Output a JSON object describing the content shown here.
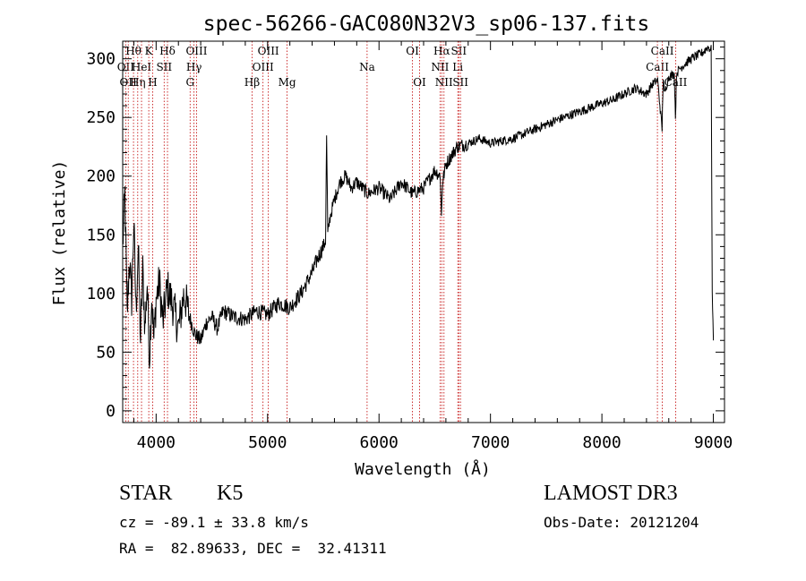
{
  "chart_data": {
    "type": "line",
    "title": "spec-56266-GAC080N32V3_sp06-137.fits",
    "xlabel": "Wavelength (Å)",
    "ylabel": "Flux (relative)",
    "xlim": [
      3700,
      9100
    ],
    "ylim": [
      -10,
      315
    ],
    "xticks": [
      4000,
      5000,
      6000,
      7000,
      8000,
      9000
    ],
    "yticks": [
      0,
      50,
      100,
      150,
      200,
      250,
      300
    ],
    "series": [
      {
        "name": "flux",
        "x": [
          3700,
          3720,
          3740,
          3760,
          3780,
          3800,
          3820,
          3840,
          3860,
          3880,
          3900,
          3920,
          3940,
          3960,
          3980,
          4000,
          4030,
          4060,
          4100,
          4150,
          4200,
          4250,
          4300,
          4350,
          4400,
          4450,
          4500,
          4550,
          4600,
          4700,
          4800,
          4900,
          5000,
          5100,
          5200,
          5300,
          5400,
          5450,
          5500,
          5520,
          5530,
          5540,
          5560,
          5600,
          5650,
          5700,
          5750,
          5800,
          5900,
          6000,
          6100,
          6200,
          6300,
          6400,
          6500,
          6550,
          6560,
          6570,
          6580,
          6600,
          6700,
          6800,
          6900,
          7000,
          7200,
          7400,
          7600,
          7800,
          8000,
          8100,
          8200,
          8300,
          8400,
          8450,
          8500,
          8540,
          8550,
          8560,
          8600,
          8650,
          8660,
          8670,
          8700,
          8800,
          8900,
          8950,
          8980,
          8990,
          9000
        ],
        "y": [
          140,
          185,
          80,
          130,
          95,
          160,
          85,
          140,
          60,
          120,
          70,
          110,
          45,
          100,
          60,
          95,
          110,
          75,
          105,
          90,
          70,
          100,
          80,
          65,
          60,
          75,
          80,
          70,
          85,
          80,
          78,
          85,
          82,
          92,
          88,
          100,
          118,
          130,
          140,
          145,
          235,
          150,
          165,
          180,
          195,
          200,
          190,
          195,
          185,
          190,
          180,
          195,
          185,
          190,
          205,
          200,
          165,
          195,
          200,
          210,
          225,
          228,
          232,
          228,
          232,
          240,
          248,
          255,
          262,
          265,
          270,
          275,
          270,
          278,
          282,
          240,
          285,
          270,
          285,
          287,
          250,
          288,
          292,
          300,
          305,
          310,
          308,
          100,
          60
        ],
        "color": "#000000"
      }
    ],
    "lines": [
      {
        "wavelength": 3727,
        "label": "OII",
        "row": 1
      },
      {
        "wavelength": 3750,
        "label": "OII",
        "row": 2
      },
      {
        "wavelength": 3797,
        "label": "Hθ",
        "row": 0
      },
      {
        "wavelength": 3835,
        "label": "Hη",
        "row": 2
      },
      {
        "wavelength": 3869,
        "label": "HeI",
        "row": 1
      },
      {
        "wavelength": 3934,
        "label": "K",
        "row": 0
      },
      {
        "wavelength": 3969,
        "label": "H",
        "row": 2
      },
      {
        "wavelength": 4072,
        "label": "SII",
        "row": 1
      },
      {
        "wavelength": 4102,
        "label": "Hδ",
        "row": 0
      },
      {
        "wavelength": 4305,
        "label": "G",
        "row": 2
      },
      {
        "wavelength": 4340,
        "label": "Hγ",
        "row": 1
      },
      {
        "wavelength": 4363,
        "label": "OIII",
        "row": 0
      },
      {
        "wavelength": 4861,
        "label": "Hβ",
        "row": 2
      },
      {
        "wavelength": 4959,
        "label": "OIII",
        "row": 1
      },
      {
        "wavelength": 5007,
        "label": "OIII",
        "row": 0
      },
      {
        "wavelength": 5175,
        "label": "Mg",
        "row": 2
      },
      {
        "wavelength": 5893,
        "label": "Na",
        "row": 1
      },
      {
        "wavelength": 6300,
        "label": "OI",
        "row": 0
      },
      {
        "wavelength": 6364,
        "label": "OI",
        "row": 2
      },
      {
        "wavelength": 6548,
        "label": "NII",
        "row": 1
      },
      {
        "wavelength": 6563,
        "label": "Hα",
        "row": 0
      },
      {
        "wavelength": 6583,
        "label": "NII",
        "row": 2
      },
      {
        "wavelength": 6707,
        "label": "Li",
        "row": 1
      },
      {
        "wavelength": 6716,
        "label": "SII",
        "row": 0
      },
      {
        "wavelength": 6731,
        "label": "SII",
        "row": 2
      },
      {
        "wavelength": 8498,
        "label": "CaII",
        "row": 1
      },
      {
        "wavelength": 8542,
        "label": "CaII",
        "row": 0
      },
      {
        "wavelength": 8662,
        "label": "CaII",
        "row": 2
      }
    ]
  },
  "info": {
    "object_class": "STAR",
    "subclass": "K5",
    "survey": "LAMOST DR3",
    "cz": "cz = -89.1 ± 33.8 km/s",
    "obs_date": "Obs-Date: 20121204",
    "coords": "RA =  82.89633, DEC =  32.41311"
  }
}
